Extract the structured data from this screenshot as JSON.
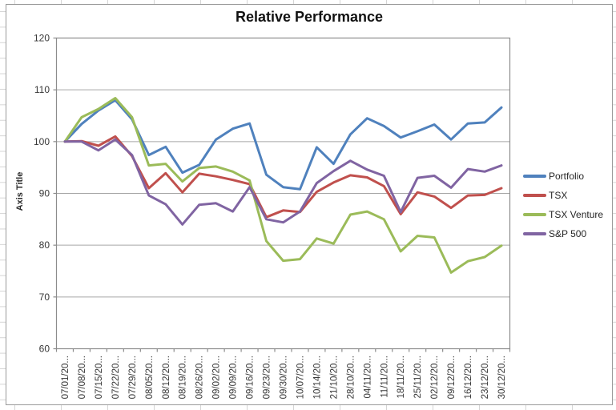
{
  "title": "Relative Performance",
  "y_axis": {
    "title": "Axis Title",
    "tick_labels": [
      "60",
      "70",
      "80",
      "90",
      "100",
      "110",
      "120"
    ]
  },
  "x_axis": {
    "tick_labels": [
      "07/01/20...",
      "07/08/20...",
      "07/15/20...",
      "07/22/20...",
      "07/29/20...",
      "08/05/20...",
      "08/12/20...",
      "08/19/20...",
      "08/26/20...",
      "09/02/20...",
      "09/09/20...",
      "09/16/20...",
      "09/23/20...",
      "09/30/20...",
      "10/07/20...",
      "10/14/20...",
      "21/10/20...",
      "28/10/20...",
      "04/11/20...",
      "11/11/20...",
      "18/11/20...",
      "25/11/20...",
      "02/12/20...",
      "09/12/20...",
      "16/12/20...",
      "23/12/20...",
      "30/12/20..."
    ]
  },
  "legend": {
    "position": "right",
    "items": [
      "Portfolio",
      "TSX",
      "TSX Venture",
      "S&P 500"
    ]
  },
  "colors": {
    "portfolio": "#4F81BD",
    "tsx": "#C0504D",
    "tsx_venture": "#9BBB59",
    "sp500": "#8064A2",
    "gridline": "#A6A6A6",
    "axis": "#8C8C8C",
    "chart_border": "#9A9A9A",
    "tick_text": "#383838",
    "title_text": "#111111"
  },
  "chart_data": {
    "type": "line",
    "title": "Relative Performance",
    "xlabel": "",
    "ylabel": "Axis Title",
    "ylim": [
      60,
      120
    ],
    "y_tick_step": 10,
    "grid": true,
    "legend_position": "right",
    "categories": [
      "07/01/20...",
      "07/08/20...",
      "07/15/20...",
      "07/22/20...",
      "07/29/20...",
      "08/05/20...",
      "08/12/20...",
      "08/19/20...",
      "08/26/20...",
      "09/02/20...",
      "09/09/20...",
      "09/16/20...",
      "09/23/20...",
      "09/30/20...",
      "10/07/20...",
      "10/14/20...",
      "21/10/20...",
      "28/10/20...",
      "04/11/20...",
      "11/11/20...",
      "18/11/20...",
      "25/11/20...",
      "02/12/20...",
      "09/12/20...",
      "16/12/20...",
      "23/12/20...",
      "30/12/20..."
    ],
    "series": [
      {
        "name": "Portfolio",
        "color": "#4F81BD",
        "values": [
          100,
          103.4,
          106.0,
          108.0,
          104.3,
          97.4,
          99.0,
          94.0,
          95.5,
          100.4,
          102.5,
          103.5,
          93.6,
          91.2,
          90.8,
          98.9,
          95.7,
          101.4,
          104.5,
          103.0,
          100.8,
          102.0,
          103.3,
          100.4,
          103.5,
          103.7,
          106.6
        ]
      },
      {
        "name": "TSX",
        "color": "#C0504D",
        "values": [
          100,
          100.1,
          99.2,
          101.0,
          97.2,
          91.0,
          93.9,
          90.2,
          93.8,
          93.3,
          92.6,
          91.8,
          85.4,
          86.7,
          86.4,
          90.3,
          92.1,
          93.5,
          93.1,
          91.4,
          86.0,
          90.2,
          89.4,
          87.2,
          89.6,
          89.7,
          91.0
        ]
      },
      {
        "name": "TSX Venture",
        "color": "#9BBB59",
        "values": [
          100,
          104.7,
          106.3,
          108.4,
          104.7,
          95.4,
          95.7,
          92.3,
          94.9,
          95.2,
          94.2,
          92.5,
          80.8,
          77.0,
          77.3,
          81.3,
          80.3,
          85.9,
          86.5,
          85.0,
          78.8,
          81.8,
          81.5,
          74.7,
          76.9,
          77.7,
          79.9
        ]
      },
      {
        "name": "S&P 500",
        "color": "#8064A2",
        "values": [
          100,
          100.0,
          98.3,
          100.4,
          97.4,
          89.6,
          87.9,
          84.0,
          87.8,
          88.1,
          86.5,
          91.2,
          85.0,
          84.4,
          86.5,
          92.0,
          94.3,
          96.3,
          94.6,
          93.4,
          86.4,
          93.0,
          93.4,
          91.1,
          94.7,
          94.2,
          95.4
        ]
      }
    ]
  }
}
